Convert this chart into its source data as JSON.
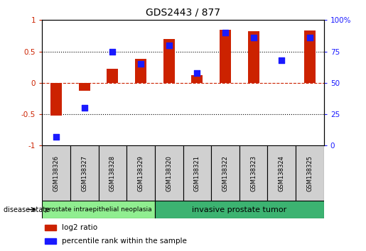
{
  "title": "GDS2443 / 877",
  "samples": [
    "GSM138326",
    "GSM138327",
    "GSM138328",
    "GSM138329",
    "GSM138320",
    "GSM138321",
    "GSM138322",
    "GSM138323",
    "GSM138324",
    "GSM138325"
  ],
  "log2_ratio": [
    -0.52,
    -0.13,
    0.22,
    0.38,
    0.7,
    0.12,
    0.84,
    0.82,
    0.0,
    0.83
  ],
  "percentile_rank": [
    7,
    30,
    75,
    65,
    80,
    58,
    90,
    86,
    68,
    86
  ],
  "groups": [
    {
      "label": "prostate intraepithelial neoplasia",
      "indices": [
        0,
        3
      ],
      "color": "#90ee90"
    },
    {
      "label": "invasive prostate tumor",
      "indices": [
        4,
        9
      ],
      "color": "#3cb371"
    }
  ],
  "bar_color_red": "#cc2200",
  "bar_color_blue": "#1a1aff",
  "ylim_left": [
    -1.0,
    1.0
  ],
  "ylim_right": [
    0,
    100
  ],
  "yticks_left": [
    -1,
    -0.5,
    0,
    0.5,
    1
  ],
  "ytick_labels_left": [
    "-1",
    "-0.5",
    "0",
    "0.5",
    "1"
  ],
  "yticks_right": [
    0,
    25,
    50,
    75,
    100
  ],
  "ytick_labels_right": [
    "0",
    "25",
    "50",
    "75",
    "100%"
  ],
  "disease_state_label": "disease state",
  "legend_items": [
    {
      "label": "log2 ratio",
      "color": "#cc2200"
    },
    {
      "label": "percentile rank within the sample",
      "color": "#1a1aff"
    }
  ],
  "background_color": "#ffffff",
  "bar_width": 0.4,
  "sample_label_bg": "#d0d0d0",
  "figsize": [
    5.15,
    3.54
  ],
  "dpi": 100
}
